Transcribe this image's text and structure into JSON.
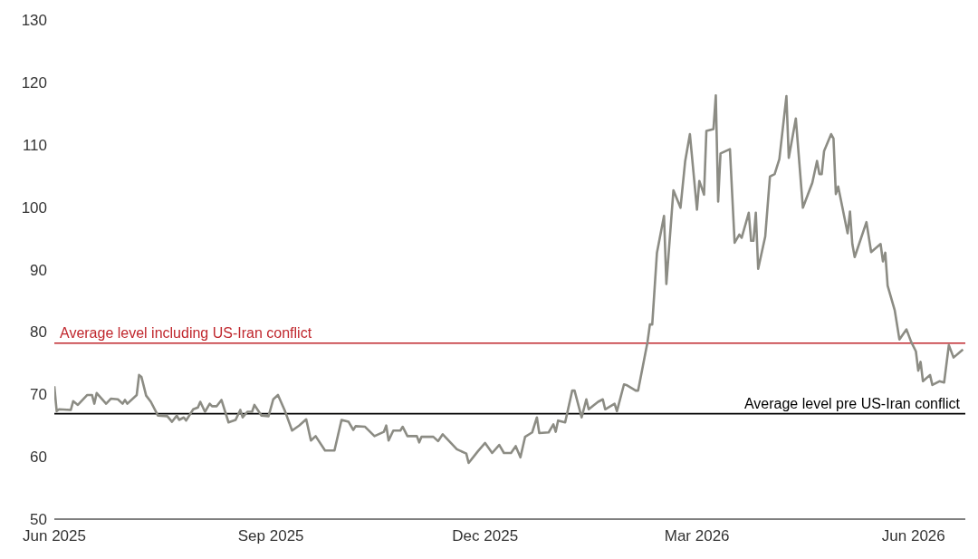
{
  "chart_data": {
    "type": "line",
    "x": [
      "2025-06-01",
      "2025-06-02",
      "2025-06-03",
      "2025-06-08",
      "2025-06-09",
      "2025-06-11",
      "2025-06-15",
      "2025-06-17",
      "2025-06-18",
      "2025-06-19",
      "2025-06-23",
      "2025-06-25",
      "2025-06-28",
      "2025-06-30",
      "2025-07-01",
      "2025-07-02",
      "2025-07-06",
      "2025-07-07",
      "2025-07-08",
      "2025-07-10",
      "2025-07-12",
      "2025-07-15",
      "2025-07-19",
      "2025-07-21",
      "2025-07-23",
      "2025-07-24",
      "2025-07-26",
      "2025-07-27",
      "2025-07-30",
      "2025-08-01",
      "2025-08-02",
      "2025-08-04",
      "2025-08-06",
      "2025-08-07",
      "2025-08-09",
      "2025-08-11",
      "2025-08-14",
      "2025-08-17",
      "2025-08-19",
      "2025-08-20",
      "2025-08-22",
      "2025-08-24",
      "2025-08-25",
      "2025-08-28",
      "2025-08-31",
      "2025-09-02",
      "2025-09-04",
      "2025-09-07",
      "2025-09-10",
      "2025-09-13",
      "2025-09-16",
      "2025-09-18",
      "2025-09-20",
      "2025-09-24",
      "2025-09-28",
      "2025-10-01",
      "2025-10-04",
      "2025-10-06",
      "2025-10-07",
      "2025-10-11",
      "2025-10-15",
      "2025-10-19",
      "2025-10-20",
      "2025-10-21",
      "2025-10-23",
      "2025-10-26",
      "2025-10-27",
      "2025-10-29",
      "2025-11-02",
      "2025-11-03",
      "2025-11-04",
      "2025-11-09",
      "2025-11-11",
      "2025-11-13",
      "2025-11-17",
      "2025-11-19",
      "2025-11-23",
      "2025-11-24",
      "2025-11-28",
      "2025-12-01",
      "2025-12-04",
      "2025-12-07",
      "2025-12-09",
      "2025-12-12",
      "2025-12-14",
      "2025-12-16",
      "2025-12-18",
      "2025-12-21",
      "2025-12-23",
      "2025-12-24",
      "2025-12-28",
      "2025-12-30",
      "2025-12-31",
      "2026-01-01",
      "2026-01-04",
      "2026-01-07",
      "2026-01-08",
      "2026-01-11",
      "2026-01-13",
      "2026-01-14",
      "2026-01-18",
      "2026-01-20",
      "2026-01-21",
      "2026-01-25",
      "2026-01-26",
      "2026-01-29",
      "2026-01-30",
      "2026-02-03",
      "2026-02-04",
      "2026-02-08",
      "2026-02-09",
      "2026-02-10",
      "2026-02-12",
      "2026-02-15",
      "2026-02-16",
      "2026-02-19",
      "2026-02-22",
      "2026-02-24",
      "2026-02-26",
      "2026-03-01",
      "2026-03-02",
      "2026-03-04",
      "2026-03-05",
      "2026-03-08",
      "2026-03-09",
      "2026-03-10",
      "2026-03-11",
      "2026-03-15",
      "2026-03-17",
      "2026-03-19",
      "2026-03-20",
      "2026-03-23",
      "2026-03-24",
      "2026-03-25",
      "2026-03-26",
      "2026-03-27",
      "2026-03-30",
      "2026-04-01",
      "2026-04-03",
      "2026-04-05",
      "2026-04-08",
      "2026-04-09",
      "2026-04-12",
      "2026-04-15",
      "2026-04-19",
      "2026-04-21",
      "2026-04-22",
      "2026-04-23",
      "2026-04-24",
      "2026-04-27",
      "2026-04-28",
      "2026-04-29",
      "2026-04-30",
      "2026-05-04",
      "2026-05-05",
      "2026-05-06",
      "2026-05-07",
      "2026-05-12",
      "2026-05-14",
      "2026-05-18",
      "2026-05-19",
      "2026-05-20",
      "2026-05-21",
      "2026-05-24",
      "2026-05-26",
      "2026-05-29",
      "2026-05-31",
      "2026-06-02",
      "2026-06-03",
      "2026-06-04",
      "2026-06-05",
      "2026-06-08",
      "2026-06-09",
      "2026-06-12",
      "2026-06-14",
      "2026-06-16",
      "2026-06-18",
      "2026-06-22"
    ],
    "series": [
      {
        "color": "#8c8c84",
        "values": [
          71.3,
          67.3,
          67.6,
          67.5,
          68.9,
          68.3,
          69.9,
          69.9,
          68.5,
          70.2,
          68.5,
          69.3,
          69.2,
          68.5,
          69.1,
          68.5,
          69.9,
          73.1,
          72.8,
          69.8,
          68.8,
          66.6,
          66.5,
          65.6,
          66.6,
          65.9,
          66.3,
          65.8,
          67.6,
          67.9,
          68.8,
          67.2,
          68.5,
          68.1,
          68.1,
          69.1,
          65.5,
          65.9,
          67.5,
          66.3,
          67.2,
          67.2,
          68.3,
          66.6,
          66.5,
          69.2,
          69.9,
          67.3,
          64.2,
          65.0,
          66.0,
          62.6,
          63.3,
          61.0,
          61.0,
          65.9,
          65.6,
          64.3,
          64.9,
          64.8,
          63.3,
          64.0,
          65.0,
          62.6,
          64.2,
          64.2,
          64.8,
          63.3,
          63.3,
          62.3,
          63.2,
          63.2,
          62.5,
          63.6,
          62.0,
          61.2,
          60.5,
          59.0,
          60.9,
          62.2,
          60.6,
          61.9,
          60.6,
          60.6,
          61.7,
          59.9,
          63.2,
          63.9,
          66.3,
          63.8,
          63.9,
          65.2,
          64.0,
          65.8,
          65.5,
          70.6,
          70.6,
          66.3,
          69.2,
          67.6,
          68.8,
          69.2,
          67.6,
          68.5,
          67.3,
          71.6,
          71.5,
          70.6,
          70.6,
          78.4,
          81.2,
          81.2,
          92.7,
          98.6,
          87.7,
          102.7,
          99.9,
          107.4,
          111.7,
          99.6,
          104.2,
          102.0,
          112.2,
          112.5,
          117.9,
          100.9,
          108.6,
          109.3,
          94.3,
          95.6,
          95.1,
          99.1,
          94.6,
          94.6,
          99.1,
          90.1,
          95.3,
          104.9,
          105.3,
          107.7,
          117.8,
          107.9,
          114.2,
          99.9,
          103.9,
          107.4,
          105.3,
          105.3,
          109.0,
          111.7,
          111.0,
          102.1,
          103.3,
          95.8,
          99.3,
          94.1,
          92.0,
          97.6,
          92.8,
          94.1,
          91.3,
          92.7,
          87.4,
          83.5,
          78.8,
          80.4,
          78.4,
          76.9,
          73.8,
          75.2,
          72.1,
          73.1,
          71.5,
          72.1,
          71.9,
          77.9,
          75.9,
          77.2
        ]
      }
    ],
    "xlim": [
      "2025-06-01",
      "2026-06-23"
    ],
    "xticks": [
      {
        "value": "2025-06-01",
        "label": "Jun 2025"
      },
      {
        "value": "2025-09-01",
        "label": "Sep 2025"
      },
      {
        "value": "2025-12-01",
        "label": "Dec 2025"
      },
      {
        "value": "2026-03-01",
        "label": "Mar 2026"
      },
      {
        "value": "2026-06-01",
        "label": "Jun 2026"
      }
    ],
    "ylim": [
      50,
      130
    ],
    "yticks": [
      50,
      60,
      70,
      80,
      90,
      100,
      110,
      120,
      130
    ],
    "ref_lines": [
      {
        "axis": "y",
        "value": 78.2,
        "label": "Average level including US-Iran conflict",
        "color": "#c0272d"
      },
      {
        "axis": "y",
        "value": 66.9,
        "label": "Average level pre US-Iran conflict",
        "color": "#000000"
      }
    ],
    "marker": "none",
    "line_style": "solid"
  }
}
